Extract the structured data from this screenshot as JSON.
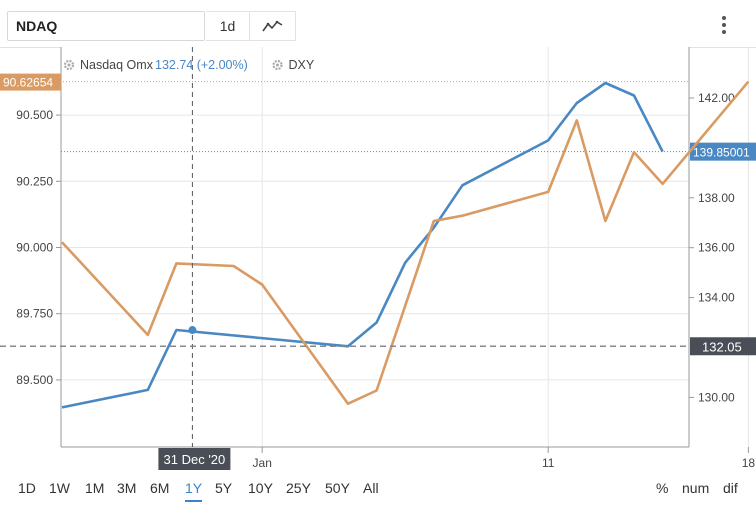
{
  "toolbar": {
    "symbol": "NDAQ",
    "interval": "1d",
    "chart_type_icon": "line-chart-icon",
    "menu_icon": "vertical-dots-icon"
  },
  "legend": [
    {
      "name": "Nasdaq Omx",
      "value": "132.74 (+2.00%)",
      "color": "#4a88c3",
      "icon": "gear-icon"
    },
    {
      "name": "DXY",
      "value": "",
      "color": "#d99b63",
      "icon": "gear-icon"
    }
  ],
  "left_axis": {
    "ticks": [
      "90.500",
      "90.250",
      "90.000",
      "89.750",
      "89.500"
    ],
    "current_label": "90.62654",
    "current_color": "#d99b63"
  },
  "right_axis": {
    "ticks": [
      "142.00",
      "140.00",
      "138.00",
      "136.00",
      "134.00",
      "130.00"
    ],
    "current_label": "139.85001",
    "current_color": "#4a88c3",
    "crosshair_label": "132.05",
    "crosshair_color": "#4a4f57"
  },
  "x_axis": {
    "ticks": [
      "Jan",
      "11",
      "18"
    ],
    "crosshair_label": "31 Dec '20"
  },
  "ranges": [
    "1D",
    "1W",
    "1M",
    "3M",
    "6M",
    "1Y",
    "5Y",
    "10Y",
    "25Y",
    "50Y",
    "All"
  ],
  "active_range": "1Y",
  "modes": [
    "%",
    "num",
    "dif"
  ],
  "chart_data": {
    "type": "line",
    "x": [
      "2020-12-28",
      "2020-12-29",
      "2020-12-30",
      "2020-12-31",
      "2021-01-01",
      "2021-01-04",
      "2021-01-05",
      "2021-01-06",
      "2021-01-07",
      "2021-01-08",
      "2021-01-11",
      "2021-01-12",
      "2021-01-13",
      "2021-01-14",
      "2021-01-15"
    ],
    "series": [
      {
        "name": "Nasdaq Omx",
        "axis": "right",
        "color": "#4a88c3",
        "points": [
          [
            "2020-12-25",
            129.6
          ],
          [
            "2020-12-28",
            130.3
          ],
          [
            "2020-12-29",
            132.7
          ],
          [
            "2021-01-04",
            132.05
          ],
          [
            "2021-01-05",
            133.0
          ],
          [
            "2021-01-06",
            135.4
          ],
          [
            "2021-01-07",
            136.8
          ],
          [
            "2021-01-08",
            138.5
          ],
          [
            "2021-01-11",
            140.3
          ],
          [
            "2021-01-12",
            141.8
          ],
          [
            "2021-01-13",
            142.6
          ],
          [
            "2021-01-14",
            142.1
          ],
          [
            "2021-01-15",
            139.85
          ]
        ]
      },
      {
        "name": "DXY",
        "axis": "left",
        "color": "#d99b63",
        "points": [
          [
            "2020-12-25",
            90.02
          ],
          [
            "2020-12-28",
            89.67
          ],
          [
            "2020-12-29",
            89.94
          ],
          [
            "2020-12-31",
            89.93
          ],
          [
            "2021-01-01",
            89.86
          ],
          [
            "2021-01-04",
            89.41
          ],
          [
            "2021-01-05",
            89.46
          ],
          [
            "2021-01-06",
            89.78
          ],
          [
            "2021-01-07",
            90.1
          ],
          [
            "2021-01-08",
            90.12
          ],
          [
            "2021-01-11",
            90.21
          ],
          [
            "2021-01-12",
            90.48
          ],
          [
            "2021-01-13",
            90.1
          ],
          [
            "2021-01-14",
            90.36
          ],
          [
            "2021-01-15",
            90.24
          ],
          [
            "2021-01-18",
            90.62654
          ]
        ]
      }
    ],
    "crosshair": {
      "date": "2020-12-31",
      "value": 132.05
    },
    "left_ylim": [
      89.3,
      90.7
    ],
    "right_ylim": [
      128.0,
      144.0
    ],
    "grid": true,
    "legend_position": "top-left"
  }
}
